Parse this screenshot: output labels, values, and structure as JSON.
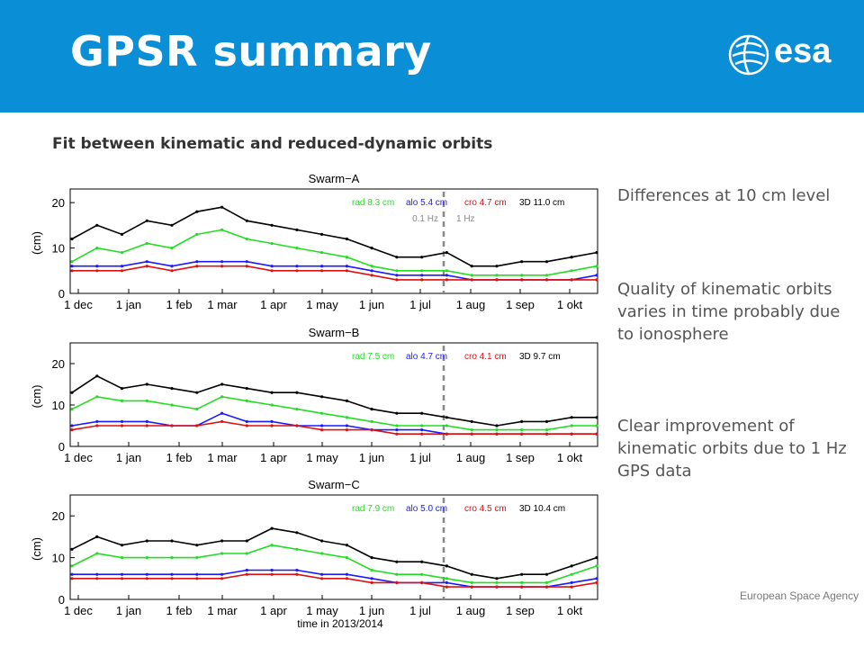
{
  "header": {
    "title": "GPSR summary",
    "logo_text": "esa",
    "color": "#0a8fd6"
  },
  "subtitle": "Fit between kinematic and reduced-dynamic orbits",
  "bullets": [
    "Differences at 10 cm level",
    "Quality of kinematic orbits varies in time probably due to ionosphere",
    "Clear improvement of kinematic orbits due to 1 Hz GPS data"
  ],
  "footer": "European Space Agency",
  "colors": {
    "3d": "#000000",
    "rad": "#22dd22",
    "alo": "#1a1aff",
    "cro": "#dd1111",
    "divider": "#888888"
  },
  "chart_data": [
    {
      "type": "line",
      "title": "Swarm−A",
      "ylabel": "(cm)",
      "xlabel": "",
      "ylim": [
        0,
        23
      ],
      "yticks": [
        0,
        10,
        20
      ],
      "xticks": [
        "1 dec",
        "1 jan",
        "1 feb",
        "1 mar",
        "1 apr",
        "1 may",
        "1 jun",
        "1 jul",
        "1 aug",
        "1 sep",
        "1 okt"
      ],
      "divider": {
        "labels": [
          "0.1 Hz",
          "1 Hz"
        ]
      },
      "legend": [
        "rad 8.3 cm",
        "alo 5.4 cm",
        "cro 4.7 cm",
        "3D 11.0 cm"
      ],
      "x": [
        "1 dec",
        "15 dec",
        "1 jan",
        "15 jan",
        "1 feb",
        "15 feb",
        "1 mar",
        "15 mar",
        "1 apr",
        "15 apr",
        "1 may",
        "15 may",
        "1 jun",
        "15 jun",
        "1 jul",
        "15 jul",
        "1 aug",
        "15 aug",
        "1 sep",
        "15 sep",
        "1 okt",
        "15 okt"
      ],
      "series": [
        {
          "name": "3D",
          "values": [
            12,
            15,
            13,
            16,
            15,
            18,
            19,
            16,
            15,
            14,
            13,
            12,
            10,
            8,
            8,
            9,
            6,
            6,
            7,
            7,
            8,
            9
          ]
        },
        {
          "name": "rad",
          "values": [
            7,
            10,
            9,
            11,
            10,
            13,
            14,
            12,
            11,
            10,
            9,
            8,
            6,
            5,
            5,
            5,
            4,
            4,
            4,
            4,
            5,
            6
          ]
        },
        {
          "name": "alo",
          "values": [
            6,
            6,
            6,
            7,
            6,
            7,
            7,
            7,
            6,
            6,
            6,
            6,
            5,
            4,
            4,
            4,
            3,
            3,
            3,
            3,
            3,
            4
          ]
        },
        {
          "name": "cro",
          "values": [
            5,
            5,
            5,
            6,
            5,
            6,
            6,
            6,
            5,
            5,
            5,
            5,
            4,
            3,
            3,
            3,
            3,
            3,
            3,
            3,
            3,
            3
          ]
        }
      ]
    },
    {
      "type": "line",
      "title": "Swarm−B",
      "ylabel": "(cm)",
      "xlabel": "",
      "ylim": [
        0,
        25
      ],
      "yticks": [
        0,
        10,
        20
      ],
      "xticks": [
        "1 dec",
        "1 jan",
        "1 feb",
        "1 mar",
        "1 apr",
        "1 may",
        "1 jun",
        "1 jul",
        "1 aug",
        "1 sep",
        "1 okt"
      ],
      "legend": [
        "rad 7.5 cm",
        "alo 4.7 cm",
        "cro 4.1 cm",
        "3D 9.7 cm"
      ],
      "x": [
        "1 dec",
        "15 dec",
        "1 jan",
        "15 jan",
        "1 feb",
        "15 feb",
        "1 mar",
        "15 mar",
        "1 apr",
        "15 apr",
        "1 may",
        "15 may",
        "1 jun",
        "15 jun",
        "1 jul",
        "15 jul",
        "1 aug",
        "15 aug",
        "1 sep",
        "15 sep",
        "1 okt",
        "15 okt"
      ],
      "series": [
        {
          "name": "3D",
          "values": [
            13,
            17,
            14,
            15,
            14,
            13,
            15,
            14,
            13,
            13,
            12,
            11,
            9,
            8,
            8,
            7,
            6,
            5,
            6,
            6,
            7,
            7
          ]
        },
        {
          "name": "rad",
          "values": [
            9,
            12,
            11,
            11,
            10,
            9,
            12,
            11,
            10,
            9,
            8,
            7,
            6,
            5,
            5,
            5,
            4,
            4,
            4,
            4,
            5,
            5
          ]
        },
        {
          "name": "alo",
          "values": [
            5,
            6,
            6,
            6,
            5,
            5,
            8,
            6,
            6,
            5,
            5,
            5,
            4,
            4,
            4,
            3,
            3,
            3,
            3,
            3,
            3,
            3
          ]
        },
        {
          "name": "cro",
          "values": [
            4,
            5,
            5,
            5,
            5,
            5,
            6,
            5,
            5,
            5,
            4,
            4,
            4,
            3,
            3,
            3,
            3,
            3,
            3,
            3,
            3,
            3
          ]
        }
      ]
    },
    {
      "type": "line",
      "title": "Swarm−C",
      "ylabel": "(cm)",
      "xlabel": "time in 2013/2014",
      "ylim": [
        0,
        25
      ],
      "yticks": [
        0,
        10,
        20
      ],
      "xticks": [
        "1 dec",
        "1 jan",
        "1 feb",
        "1 mar",
        "1 apr",
        "1 may",
        "1 jun",
        "1 jul",
        "1 aug",
        "1 sep",
        "1 okt"
      ],
      "legend": [
        "rad 7.9 cm",
        "alo 5.0 cm",
        "cro 4.5 cm",
        "3D 10.4 cm"
      ],
      "x": [
        "1 dec",
        "15 dec",
        "1 jan",
        "15 jan",
        "1 feb",
        "15 feb",
        "1 mar",
        "15 mar",
        "1 apr",
        "15 apr",
        "1 may",
        "15 may",
        "1 jun",
        "15 jun",
        "1 jul",
        "15 jul",
        "1 aug",
        "15 aug",
        "1 sep",
        "15 sep",
        "1 okt",
        "15 okt"
      ],
      "series": [
        {
          "name": "3D",
          "values": [
            12,
            15,
            13,
            14,
            14,
            13,
            14,
            14,
            17,
            16,
            14,
            13,
            10,
            9,
            9,
            8,
            6,
            5,
            6,
            6,
            8,
            10
          ]
        },
        {
          "name": "rad",
          "values": [
            8,
            11,
            10,
            10,
            10,
            10,
            11,
            11,
            13,
            12,
            11,
            10,
            7,
            6,
            6,
            5,
            4,
            4,
            4,
            4,
            6,
            8
          ]
        },
        {
          "name": "alo",
          "values": [
            6,
            6,
            6,
            6,
            6,
            6,
            6,
            7,
            7,
            7,
            6,
            6,
            5,
            4,
            4,
            4,
            3,
            3,
            3,
            3,
            4,
            5
          ]
        },
        {
          "name": "cro",
          "values": [
            5,
            5,
            5,
            5,
            5,
            5,
            5,
            6,
            6,
            6,
            5,
            5,
            4,
            4,
            4,
            3,
            3,
            3,
            3,
            3,
            3,
            4
          ]
        }
      ]
    }
  ]
}
